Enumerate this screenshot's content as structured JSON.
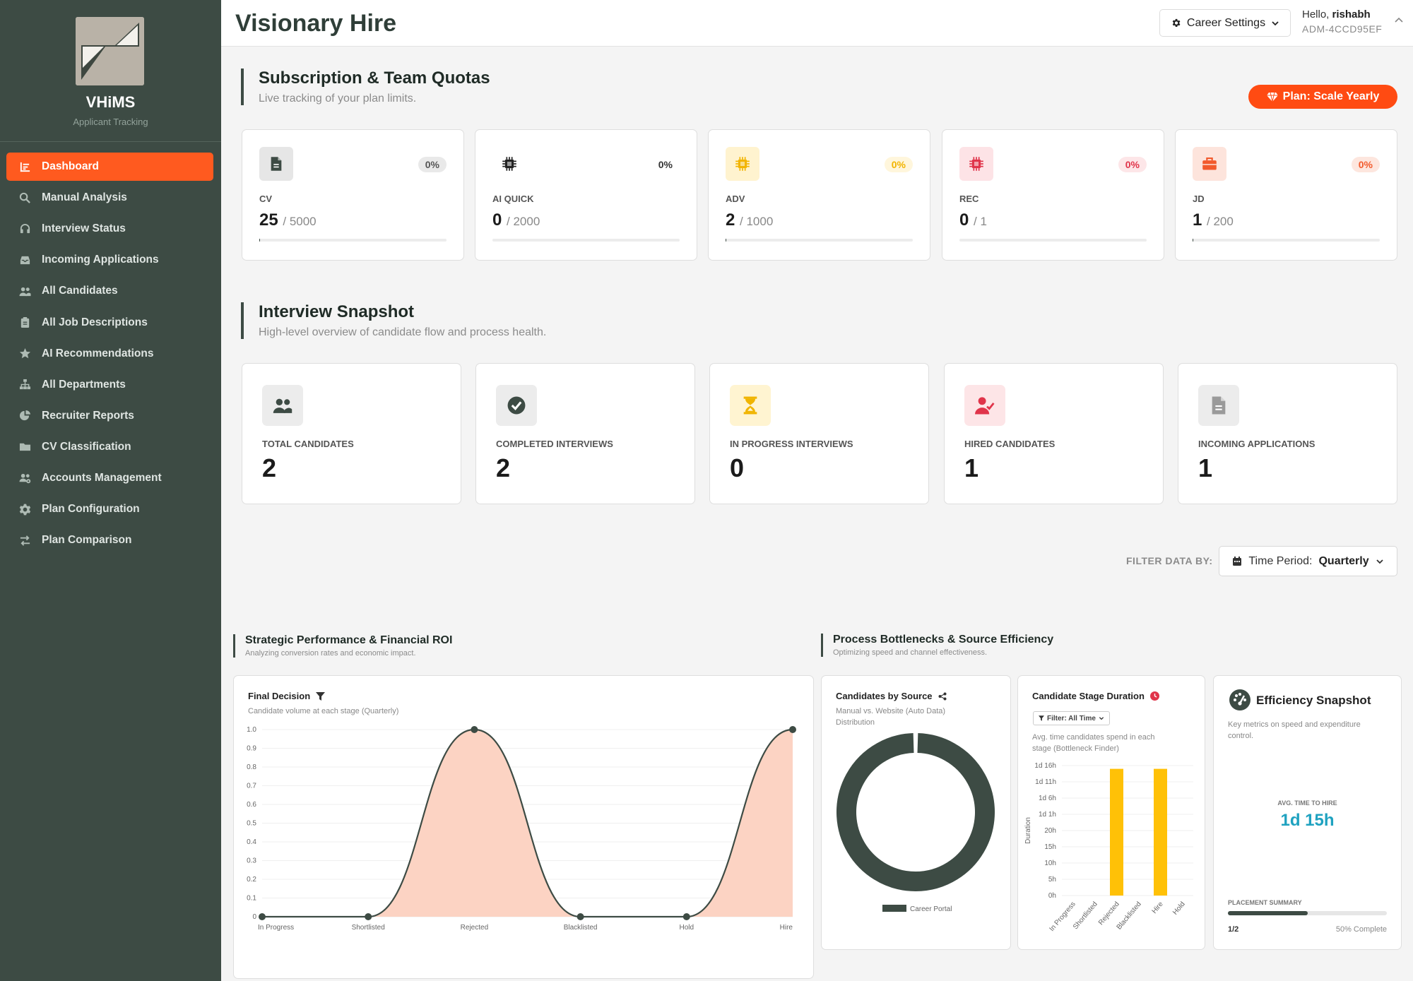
{
  "brand": {
    "name": "VHiMS",
    "tagline": "Applicant Tracking"
  },
  "sidebar": {
    "items": [
      {
        "label": "Dashboard",
        "icon": "dashboard-icon",
        "active": true
      },
      {
        "label": "Manual Analysis",
        "icon": "search-icon"
      },
      {
        "label": "Interview Status",
        "icon": "headset-icon"
      },
      {
        "label": "Incoming Applications",
        "icon": "inbox-icon"
      },
      {
        "label": "All Candidates",
        "icon": "users-icon"
      },
      {
        "label": "All Job Descriptions",
        "icon": "clipboard-icon"
      },
      {
        "label": "AI Recommendations",
        "icon": "star-icon"
      },
      {
        "label": "All Departments",
        "icon": "sitemap-icon"
      },
      {
        "label": "Recruiter Reports",
        "icon": "pie-chart-icon"
      },
      {
        "label": "CV Classification",
        "icon": "folder-icon"
      },
      {
        "label": "Accounts Management",
        "icon": "users-cog-icon"
      },
      {
        "label": "Plan Configuration",
        "icon": "gear-icon"
      },
      {
        "label": "Plan Comparison",
        "icon": "swap-icon"
      }
    ]
  },
  "header": {
    "title": "Visionary Hire",
    "career_settings": "Career Settings",
    "greeting": "Hello,",
    "username": "rishabh",
    "admin_id": "ADM-4CCD95EF"
  },
  "quotas": {
    "title": "Subscription & Team Quotas",
    "subtitle": "Live tracking of your plan limits.",
    "plan_badge": "Plan: Scale Yearly",
    "cards": [
      {
        "label": "CV",
        "used": "25",
        "limit": "/ 5000",
        "percent": "0%",
        "icon": "file-icon",
        "icon_bg": "#e6e6e6",
        "icon_color": "#3d4b44",
        "pct_bg": "#e9e9e9",
        "pct_color": "#555555",
        "fill": 0.005
      },
      {
        "label": "AI QUICK",
        "used": "0",
        "limit": "/ 2000",
        "percent": "0%",
        "icon": "chip-icon",
        "icon_bg": "#ffffff",
        "icon_color": "#222222",
        "pct_bg": "#ffffff",
        "pct_color": "#333333",
        "fill": 0
      },
      {
        "label": "ADV",
        "used": "2",
        "limit": "/ 1000",
        "percent": "0%",
        "icon": "chip-icon",
        "icon_bg": "#fff3cf",
        "icon_color": "#f2b400",
        "pct_bg": "#fff6dc",
        "pct_color": "#f2b400",
        "fill": 0.002
      },
      {
        "label": "REC",
        "used": "0",
        "limit": "/ 1",
        "percent": "0%",
        "icon": "chip-icon",
        "icon_bg": "#fde3e6",
        "icon_color": "#e0344a",
        "pct_bg": "#fde6e8",
        "pct_color": "#e0344a",
        "fill": 0
      },
      {
        "label": "JD",
        "used": "1",
        "limit": "/ 200",
        "percent": "0%",
        "icon": "briefcase-icon",
        "icon_bg": "#fde4dc",
        "icon_color": "#f25a2c",
        "pct_bg": "#fde6de",
        "pct_color": "#f25a2c",
        "fill": 0.005
      }
    ]
  },
  "snapshot": {
    "title": "Interview Snapshot",
    "subtitle": "High-level overview of candidate flow and process health.",
    "cards": [
      {
        "label": "TOTAL CANDIDATES",
        "value": "2",
        "icon": "users-icon",
        "icon_bg": "#ececec",
        "icon_color": "#3d4b44"
      },
      {
        "label": "COMPLETED INTERVIEWS",
        "value": "2",
        "icon": "check-circle-icon",
        "icon_bg": "#ececec",
        "icon_color": "#3d4b44"
      },
      {
        "label": "IN PROGRESS INTERVIEWS",
        "value": "0",
        "icon": "hourglass-icon",
        "icon_bg": "#fff4d1",
        "icon_color": "#f0b400"
      },
      {
        "label": "HIRED CANDIDATES",
        "value": "1",
        "icon": "user-check-icon",
        "icon_bg": "#fde5e7",
        "icon_color": "#e0344a"
      },
      {
        "label": "INCOMING APPLICATIONS",
        "value": "1",
        "icon": "file-icon",
        "icon_bg": "#ececec",
        "icon_color": "#9a9a9a"
      }
    ]
  },
  "filter": {
    "label": "FILTER DATA BY:",
    "prefix": "Time Period:",
    "value": "Quarterly"
  },
  "strategic": {
    "title": "Strategic Performance & Financial ROI",
    "subtitle": "Analyzing conversion rates and economic impact."
  },
  "bottlenecks": {
    "title": "Process Bottlenecks & Source Efficiency",
    "subtitle": "Optimizing speed and channel effectiveness."
  },
  "final_decision": {
    "title": "Final Decision",
    "subtitle": "Candidate volume at each stage (Quarterly)"
  },
  "by_source": {
    "title": "Candidates by Source",
    "subtitle_1": "Manual vs. Website (Auto Data)",
    "subtitle_2": "Distribution"
  },
  "stage_duration": {
    "title": "Candidate Stage Duration",
    "filter_chip": "Filter: All Time",
    "subtitle_1": "Avg. time candidates spend in each",
    "subtitle_2": "stage (Bottleneck Finder)"
  },
  "efficiency": {
    "title": "Efficiency Snapshot",
    "subtitle_1": "Key metrics on speed and expenditure",
    "subtitle_2": "control.",
    "avg_label": "AVG. TIME TO HIRE",
    "avg_value": "1d 15h",
    "placement_label": "PLACEMENT SUMMARY",
    "placement_count": "1/2",
    "placement_pct": "50% Complete",
    "placement_fraction": 0.5
  },
  "colors": {
    "sidebar": "#3d4b44",
    "accent": "#ff5a1f",
    "area_fill": "#fcd3c3",
    "bar": "#ffc107",
    "donut": "#3d4b44",
    "link": "#1fa2c0"
  },
  "chart_data": [
    {
      "type": "area",
      "title": "Final Decision",
      "categories": [
        "In Progress",
        "Shortlisted",
        "Rejected",
        "Blacklisted",
        "Hold",
        "Hire"
      ],
      "values": [
        0,
        0,
        1,
        0,
        0,
        1
      ],
      "ylim": [
        0,
        1.0
      ],
      "yticks": [
        "0",
        "0.1",
        "0.2",
        "0.3",
        "0.4",
        "0.5",
        "0.6",
        "0.7",
        "0.8",
        "0.9",
        "1.0"
      ],
      "grid": true
    },
    {
      "type": "pie",
      "title": "Candidates by Source",
      "labels": [
        "Career Portal"
      ],
      "values": [
        100
      ],
      "legend": "bottom"
    },
    {
      "type": "bar",
      "title": "Candidate Stage Duration",
      "categories": [
        "In Progress",
        "Shortlisted",
        "Rejected",
        "Blacklisted",
        "Hire",
        "Hold"
      ],
      "values_hours": [
        0,
        0,
        39,
        0,
        39,
        0
      ],
      "ylabel": "Duration",
      "yticks": [
        "0h",
        "5h",
        "10h",
        "15h",
        "20h",
        "1d 1h",
        "1d 6h",
        "1d 11h",
        "1d 16h"
      ],
      "ylim_hours": [
        0,
        40
      ],
      "grid": true
    }
  ]
}
